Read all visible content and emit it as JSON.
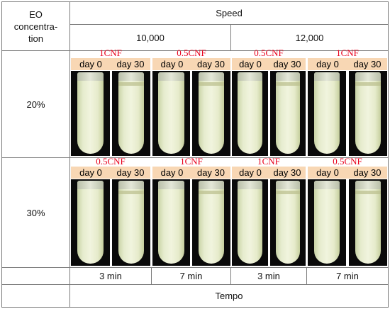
{
  "header": {
    "eo_concentration": "EO concentration-tion",
    "eo_line1": "EO",
    "eo_line2": "concentra-",
    "eo_line3": "tion",
    "speed": "Speed",
    "speed_10000": "10,000",
    "speed_12000": "12,000"
  },
  "rows": [
    {
      "label": "20%",
      "groups": [
        {
          "sample": "1CNF",
          "days": [
            "day 0",
            "day 30"
          ]
        },
        {
          "sample": "0.5CNF",
          "days": [
            "day 0",
            "day 30"
          ]
        },
        {
          "sample": "0.5CNF",
          "days": [
            "day 0",
            "day 30"
          ]
        },
        {
          "sample": "1CNF",
          "days": [
            "day 0",
            "day 30"
          ]
        }
      ]
    },
    {
      "label": "30%",
      "groups": [
        {
          "sample": "0.5CNF",
          "days": [
            "day 0",
            "day 30"
          ]
        },
        {
          "sample": "1CNF",
          "days": [
            "day 0",
            "day 30"
          ]
        },
        {
          "sample": "1CNF",
          "days": [
            "day 0",
            "day 30"
          ]
        },
        {
          "sample": "0.5CNF",
          "days": [
            "day 0",
            "day 30"
          ]
        }
      ]
    }
  ],
  "times": [
    "3 min",
    "7 min",
    "3 min",
    "7 min"
  ],
  "footer": {
    "tempo": "Tempo"
  },
  "colors": {
    "sample_label": "#e8001c",
    "day_strip": "#f8d7b4",
    "emulsion": "#eef1d8",
    "grid": "#7a7a7a"
  }
}
